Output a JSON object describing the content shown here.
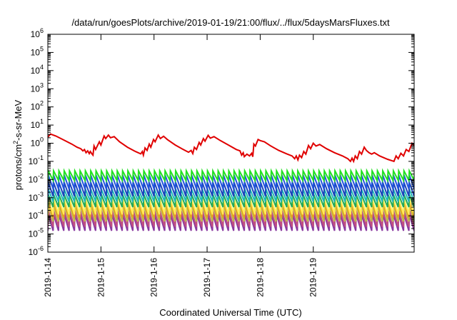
{
  "chart_data": {
    "type": "line",
    "title": "/data/run/goesPlots/archive/2019-01-19/21:00/flux/../flux/5daysMarsFluxes.txt",
    "xlabel": "Coordinated Universal Time (UTC)",
    "ylabel_main": "protons/cm",
    "ylabel_sup": "2",
    "ylabel_rest": "-s-sr-MeV",
    "yscale": "log",
    "ylim": [
      1e-06,
      1000000.0
    ],
    "xlim_days": [
      0,
      6.9
    ],
    "grid": false,
    "x_ticks": [
      {
        "day": 0,
        "label": "2019-1-14"
      },
      {
        "day": 1,
        "label": "2019-1-15"
      },
      {
        "day": 2,
        "label": "2019-1-16"
      },
      {
        "day": 3,
        "label": "2019-1-17"
      },
      {
        "day": 4,
        "label": "2019-1-18"
      },
      {
        "day": 5,
        "label": "2019-1-19"
      }
    ],
    "y_ticks": [
      {
        "exp": -6,
        "base": "10",
        "sup": "-6"
      },
      {
        "exp": -5,
        "base": "10",
        "sup": "-5"
      },
      {
        "exp": -4,
        "base": "10",
        "sup": "-4"
      },
      {
        "exp": -3,
        "base": "10",
        "sup": "-3"
      },
      {
        "exp": -2,
        "base": "10",
        "sup": "-2"
      },
      {
        "exp": -1,
        "base": "10",
        "sup": "-1"
      },
      {
        "exp": 0,
        "base": "10",
        "sup": "0"
      },
      {
        "exp": 1,
        "base": "10",
        "sup": "1"
      },
      {
        "exp": 2,
        "base": "10",
        "sup": "2"
      },
      {
        "exp": 3,
        "base": "10",
        "sup": "3"
      },
      {
        "exp": 4,
        "base": "10",
        "sup": "4"
      },
      {
        "exp": 5,
        "base": "10",
        "sup": "5"
      },
      {
        "exp": 6,
        "base": "10",
        "sup": "6"
      }
    ],
    "series": [
      {
        "color": "#e00000",
        "points": [
          [
            0.0,
            2.2
          ],
          [
            0.05,
            3.2
          ],
          [
            0.15,
            2.5
          ],
          [
            0.3,
            1.5
          ],
          [
            0.45,
            0.9
          ],
          [
            0.55,
            0.6
          ],
          [
            0.62,
            0.5
          ],
          [
            0.66,
            0.38
          ],
          [
            0.69,
            0.45
          ],
          [
            0.72,
            0.3
          ],
          [
            0.75,
            0.38
          ],
          [
            0.78,
            0.27
          ],
          [
            0.8,
            0.35
          ],
          [
            0.83,
            0.26
          ],
          [
            0.85,
            0.22
          ],
          [
            0.87,
            0.7
          ],
          [
            0.9,
            0.45
          ],
          [
            0.97,
            1.2
          ],
          [
            1.0,
            0.8
          ],
          [
            1.06,
            2.5
          ],
          [
            1.09,
            1.8
          ],
          [
            1.14,
            2.8
          ],
          [
            1.18,
            2.0
          ],
          [
            1.25,
            2.3
          ],
          [
            1.35,
            1.2
          ],
          [
            1.5,
            0.6
          ],
          [
            1.65,
            0.35
          ],
          [
            1.75,
            0.26
          ],
          [
            1.78,
            0.35
          ],
          [
            1.8,
            0.22
          ],
          [
            1.83,
            0.55
          ],
          [
            1.87,
            0.4
          ],
          [
            1.91,
            0.9
          ],
          [
            1.94,
            0.6
          ],
          [
            1.99,
            1.6
          ],
          [
            2.02,
            1.2
          ],
          [
            2.08,
            2.8
          ],
          [
            2.12,
            1.8
          ],
          [
            2.18,
            2.4
          ],
          [
            2.25,
            1.6
          ],
          [
            2.4,
            0.8
          ],
          [
            2.55,
            0.45
          ],
          [
            2.65,
            0.32
          ],
          [
            2.7,
            0.4
          ],
          [
            2.73,
            0.27
          ],
          [
            2.76,
            0.6
          ],
          [
            2.8,
            0.45
          ],
          [
            2.85,
            1.1
          ],
          [
            2.88,
            0.8
          ],
          [
            2.93,
            1.8
          ],
          [
            2.96,
            1.3
          ],
          [
            3.02,
            2.7
          ],
          [
            3.06,
            1.9
          ],
          [
            3.13,
            2.3
          ],
          [
            3.25,
            1.4
          ],
          [
            3.4,
            0.8
          ],
          [
            3.55,
            0.45
          ],
          [
            3.62,
            0.38
          ],
          [
            3.65,
            0.22
          ],
          [
            3.68,
            0.3
          ],
          [
            3.7,
            0.18
          ],
          [
            3.75,
            0.25
          ],
          [
            3.8,
            0.2
          ],
          [
            3.84,
            0.28
          ],
          [
            3.86,
            0.18
          ],
          [
            3.88,
            0.9
          ],
          [
            3.91,
            0.7
          ],
          [
            3.96,
            1.6
          ],
          [
            4.0,
            1.4
          ],
          [
            4.08,
            1.2
          ],
          [
            4.2,
            0.7
          ],
          [
            4.35,
            0.4
          ],
          [
            4.5,
            0.26
          ],
          [
            4.6,
            0.2
          ],
          [
            4.65,
            0.14
          ],
          [
            4.68,
            0.2
          ],
          [
            4.71,
            0.12
          ],
          [
            4.74,
            0.22
          ],
          [
            4.78,
            0.16
          ],
          [
            4.82,
            0.35
          ],
          [
            4.86,
            0.25
          ],
          [
            4.91,
            0.75
          ],
          [
            4.95,
            0.5
          ],
          [
            5.0,
            1.0
          ],
          [
            5.05,
            0.7
          ],
          [
            5.12,
            0.85
          ],
          [
            5.25,
            0.5
          ],
          [
            5.4,
            0.3
          ],
          [
            5.55,
            0.2
          ],
          [
            5.65,
            0.14
          ],
          [
            5.7,
            0.1
          ],
          [
            5.73,
            0.15
          ],
          [
            5.76,
            0.1
          ],
          [
            5.79,
            0.2
          ],
          [
            5.83,
            0.14
          ],
          [
            5.87,
            0.35
          ],
          [
            5.91,
            0.25
          ],
          [
            5.96,
            0.6
          ],
          [
            6.0,
            0.4
          ],
          [
            6.05,
            0.3
          ],
          [
            6.1,
            0.25
          ],
          [
            6.15,
            0.3
          ],
          [
            6.25,
            0.2
          ],
          [
            6.4,
            0.13
          ],
          [
            6.52,
            0.1
          ],
          [
            6.56,
            0.2
          ],
          [
            6.6,
            0.14
          ],
          [
            6.65,
            0.28
          ],
          [
            6.7,
            0.2
          ],
          [
            6.75,
            0.45
          ],
          [
            6.8,
            0.35
          ],
          [
            6.86,
            1.0
          ],
          [
            6.9,
            0.75
          ]
        ]
      },
      {
        "color": "#22e022",
        "sawtooth": {
          "high": 0.03,
          "low": 0.009,
          "period": 0.1
        }
      },
      {
        "color": "#2255dd",
        "sawtooth": {
          "high": 0.018,
          "low": 0.003,
          "period": 0.1
        }
      },
      {
        "color": "#1a44bb",
        "sawtooth": {
          "high": 0.007,
          "low": 0.0012,
          "period": 0.1
        }
      },
      {
        "color": "#20b8b8",
        "sawtooth": {
          "high": 0.003,
          "low": 0.0006,
          "period": 0.1
        }
      },
      {
        "color": "#22aa55",
        "sawtooth": {
          "high": 0.0015,
          "low": 0.0003,
          "period": 0.1
        }
      },
      {
        "color": "#ffee55",
        "sawtooth": {
          "high": 0.0009,
          "low": 0.00012,
          "period": 0.1
        }
      },
      {
        "color": "#e8a020",
        "sawtooth": {
          "high": 0.0006,
          "low": 8e-05,
          "period": 0.1
        }
      },
      {
        "color": "#bbbb44",
        "sawtooth": {
          "high": 0.0004,
          "low": 5e-05,
          "period": 0.1
        }
      },
      {
        "color": "#c05080",
        "sawtooth": {
          "high": 0.0002,
          "low": 2.5e-05,
          "period": 0.1
        }
      },
      {
        "color": "#8a3aa0",
        "sawtooth": {
          "high": 0.00012,
          "low": 1.5e-05,
          "period": 0.1
        }
      }
    ]
  }
}
